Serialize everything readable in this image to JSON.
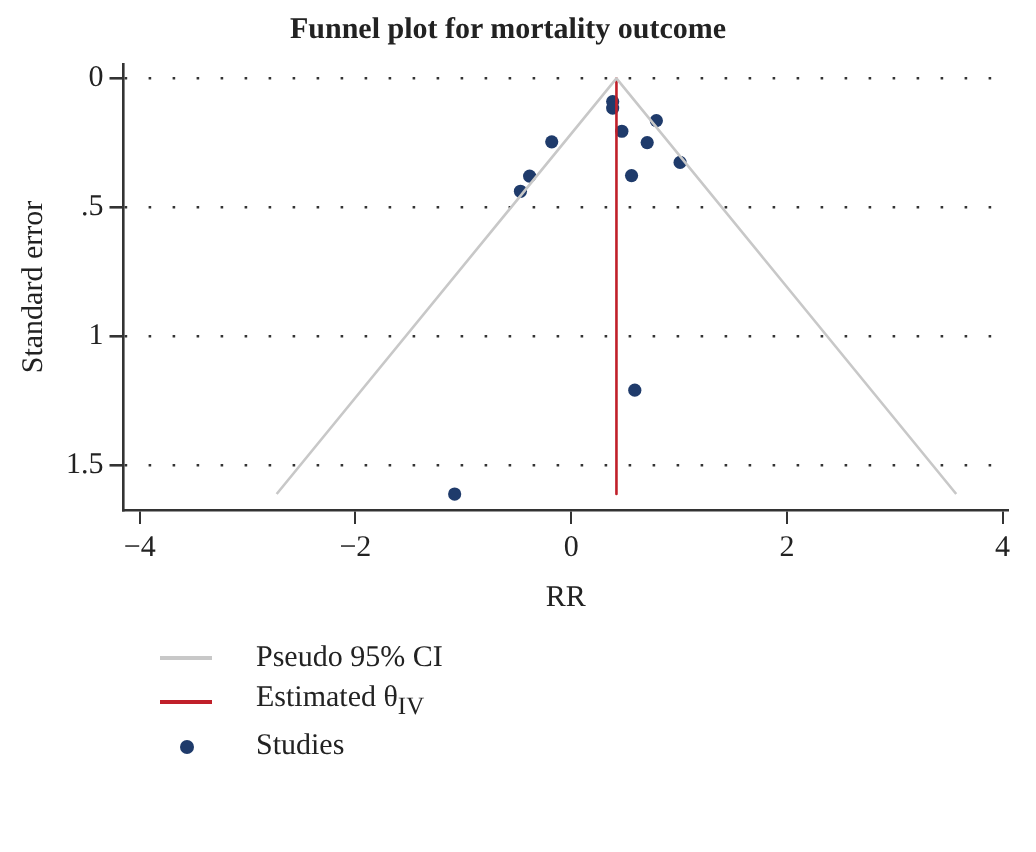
{
  "chart_data": {
    "type": "scatter",
    "title": "Funnel plot for mortality outcome",
    "xlabel": "RR",
    "ylabel": "Standard error",
    "series": [
      {
        "name": "Pseudo 95% CI",
        "type": "line",
        "marker": "none",
        "color": "#c8c8c8",
        "x": [
          -2.73,
          0.42,
          3.57
        ],
        "values": [
          1.613,
          0,
          1.613
        ]
      },
      {
        "name": "Estimated θ$_{IV}$",
        "type": "line",
        "marker": "none",
        "color": "#c0202a",
        "x": [
          0.42,
          0.42
        ],
        "values": [
          0,
          1.613
        ]
      },
      {
        "name": "Studies",
        "color": "#1f3b6b",
        "x": [
          0.385,
          0.385,
          0.79,
          0.47,
          -0.18,
          0.705,
          1.01,
          -0.385,
          0.56,
          -0.47,
          0.59,
          -1.08
        ],
        "values": [
          0.09,
          0.115,
          0.164,
          0.205,
          0.246,
          0.249,
          0.326,
          0.379,
          0.377,
          0.438,
          1.21,
          1.613
        ]
      }
    ],
    "xlim": [
      -4.15,
      4.05
    ],
    "xticks": [
      -4,
      -2,
      0,
      2,
      4
    ],
    "ylim": [
      1.675,
      -0.056
    ],
    "yticks": [
      0,
      {
        "value": 0.5,
        "label": ".5"
      },
      1,
      1.5
    ],
    "grid": "y",
    "legend": "bottom",
    "marker": "circle"
  }
}
